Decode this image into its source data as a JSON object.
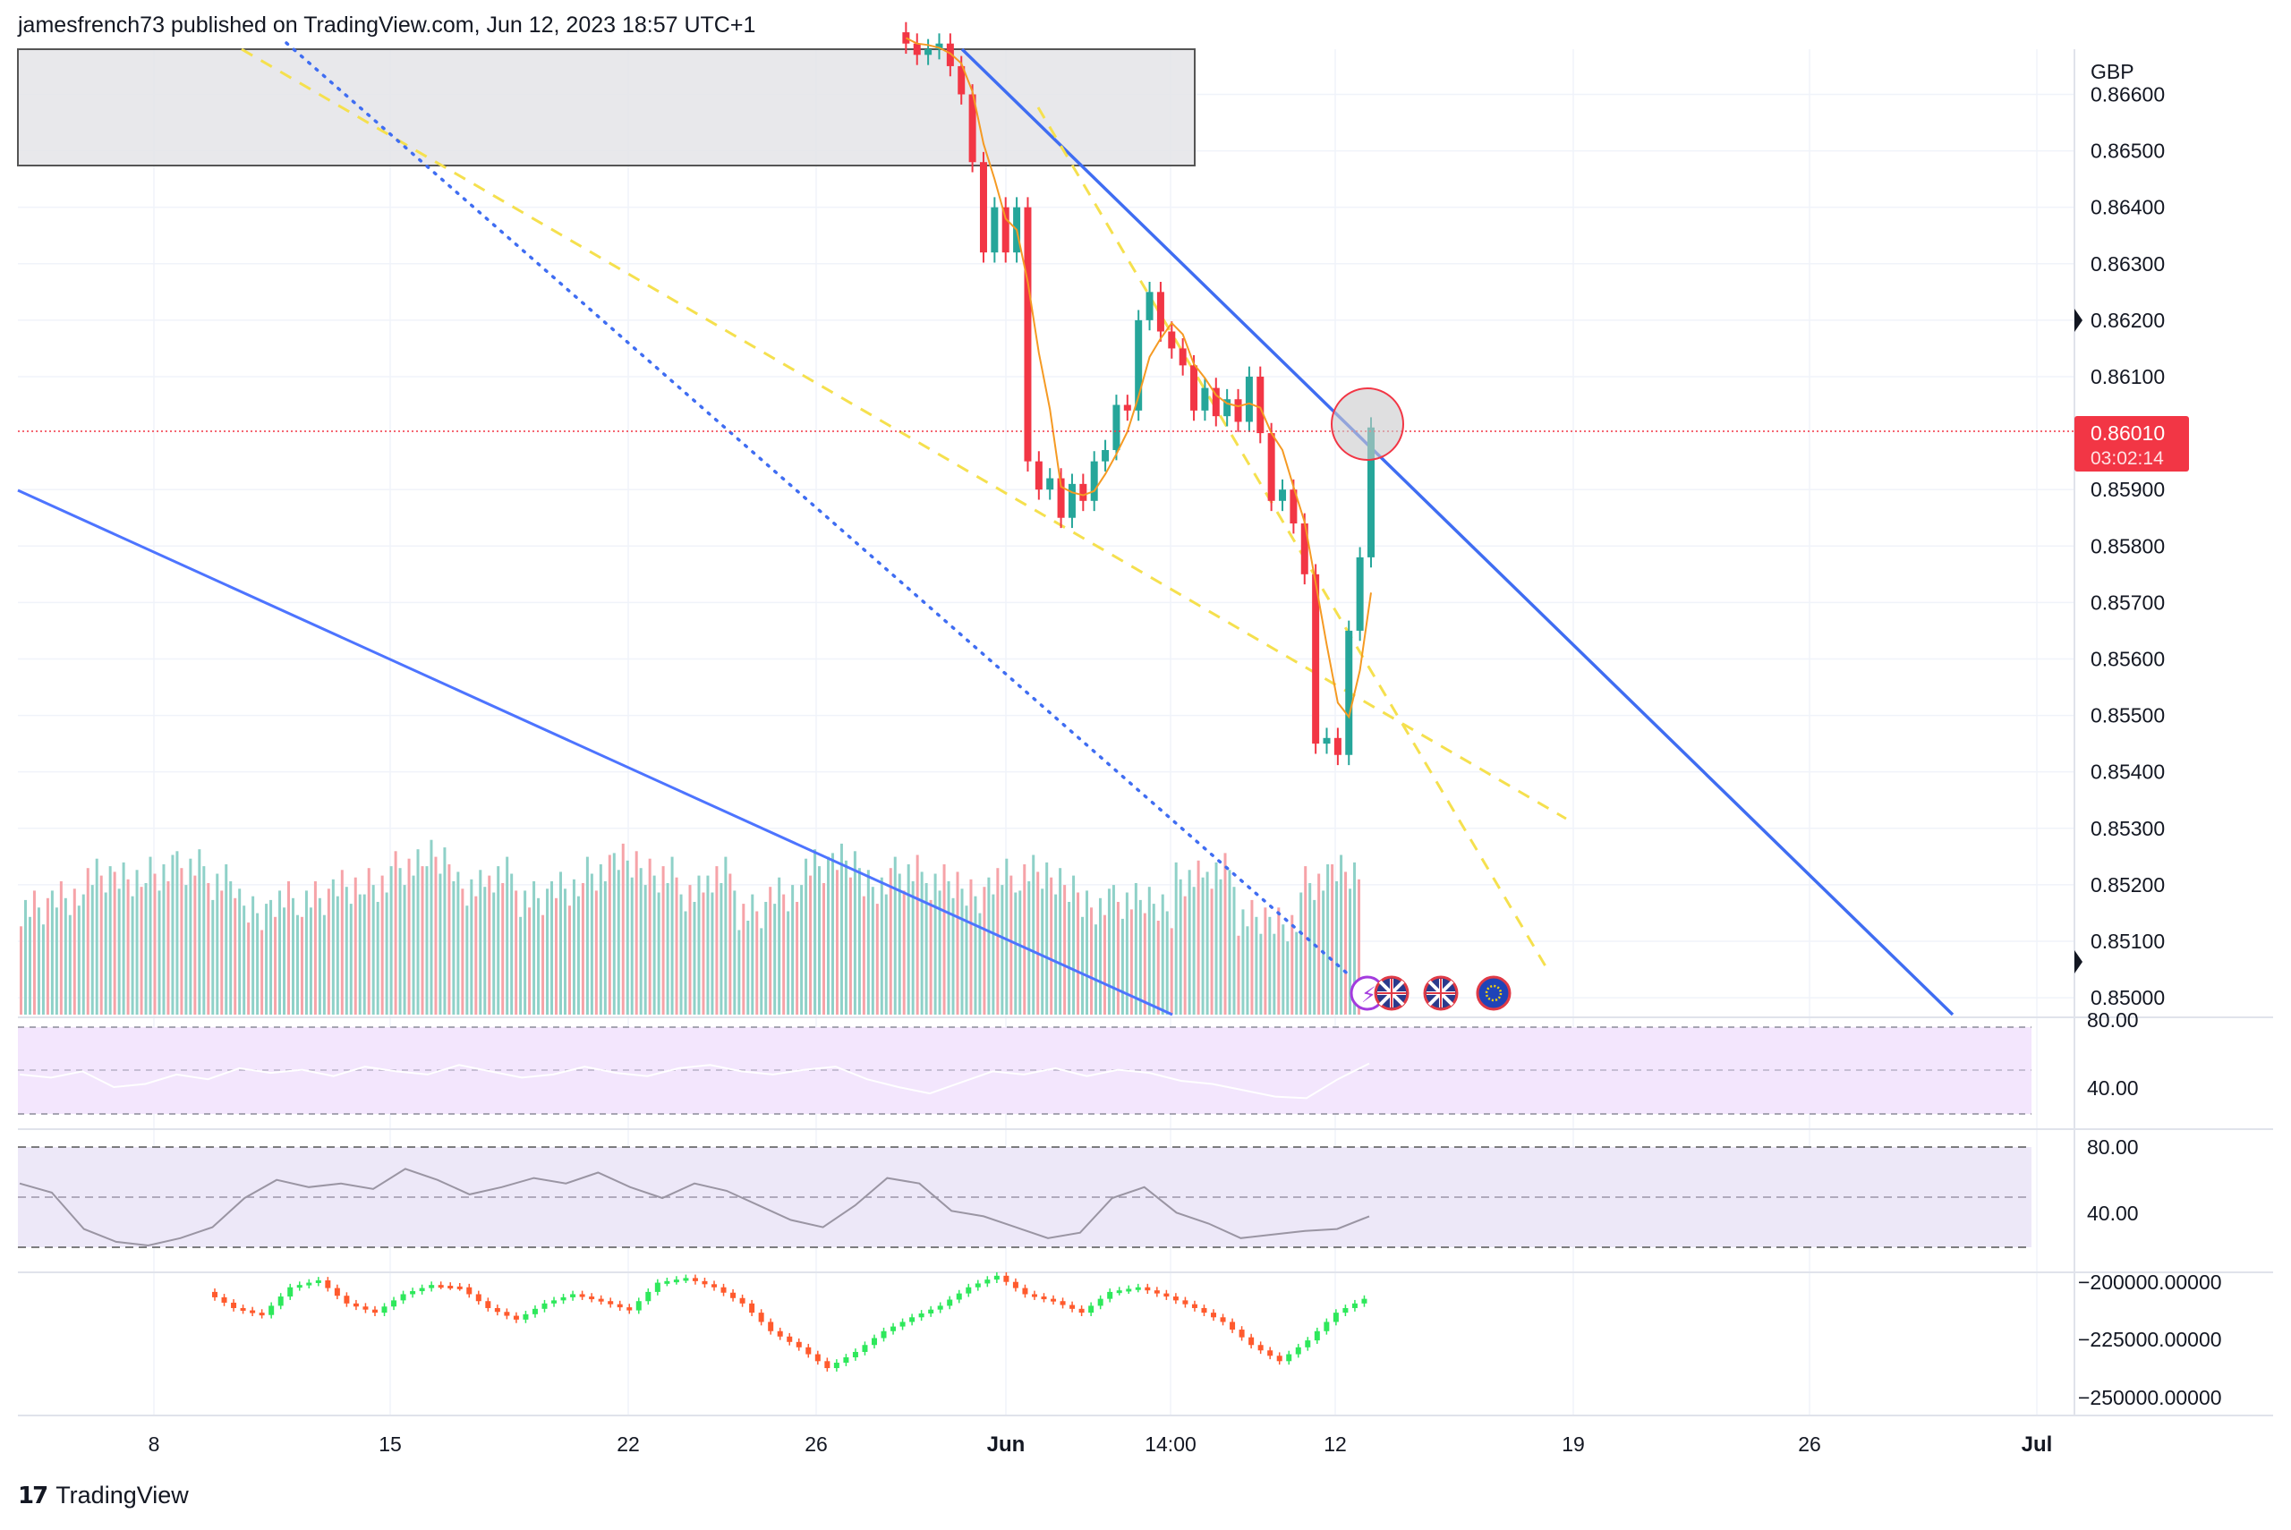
{
  "header": {
    "text": "jamesfrench73 published on TradingView.com, Jun 12, 2023 18:57 UTC+1"
  },
  "brand": {
    "name": "TradingView"
  },
  "colors": {
    "up": "#26a69a",
    "down": "#f23645",
    "trendline": "#4d74ff",
    "dashed": "#f5e04e",
    "dotted": "#3f6df2",
    "rsi_band": "#f3e6fd",
    "stoch_band": "#ede8f8",
    "osc_up": "#2ee85b",
    "osc_down": "#ff5a2d"
  },
  "chart_data": {
    "type": "candlestick",
    "symbol_currency": "GBP",
    "last_price": "0.86010",
    "countdown": "03:02:14",
    "price_axis": {
      "min": 0.8497,
      "max": 0.8668,
      "ticks": [
        "0.86600",
        "0.86500",
        "0.86400",
        "0.86300",
        "0.86200",
        "0.86100",
        "0.85900",
        "0.85800",
        "0.85700",
        "0.85600",
        "0.85500",
        "0.85400",
        "0.85300",
        "0.85200",
        "0.85100",
        "0.85000"
      ]
    },
    "time_axis": {
      "ticks": [
        "8",
        "15",
        "22",
        "26",
        "Jun",
        "14:00",
        "12",
        "19",
        "26",
        "Jul"
      ],
      "bold": [
        "Jun",
        "Jul"
      ]
    },
    "price_path": [
      0.8671,
      0.8669,
      0.8667,
      0.8668,
      0.8669,
      0.8665,
      0.866,
      0.8648,
      0.8632,
      0.864,
      0.8632,
      0.864,
      0.8595,
      0.859,
      0.8592,
      0.8585,
      0.8591,
      0.8588,
      0.8595,
      0.8597,
      0.8605,
      0.8604,
      0.862,
      0.8625,
      0.8618,
      0.8615,
      0.8612,
      0.8604,
      0.8608,
      0.8603,
      0.8606,
      0.8602,
      0.861,
      0.86,
      0.8588,
      0.859,
      0.8584,
      0.8575,
      0.8545,
      0.8546,
      0.8543,
      0.8565,
      0.8578,
      0.8601
    ],
    "volume": [
      58,
      64,
      72,
      71,
      75,
      79,
      72,
      56,
      60,
      61,
      68,
      70,
      80,
      82,
      66,
      74,
      62,
      68,
      77,
      80,
      73,
      64,
      75,
      56,
      66,
      77,
      81,
      68,
      76,
      72,
      65,
      72,
      75,
      69,
      58,
      62,
      57,
      71,
      76,
      52,
      49,
      72,
      74
    ],
    "rsi": {
      "levels": [
        "80.00",
        "40.00"
      ],
      "values": [
        50,
        48,
        52,
        42,
        44,
        50,
        47,
        54,
        51,
        53,
        49,
        55,
        52,
        50,
        56,
        52,
        48,
        50,
        55,
        51,
        49,
        54,
        56,
        52,
        50,
        53,
        55,
        47,
        42,
        38,
        45,
        52,
        50,
        54,
        49,
        53,
        51,
        46,
        44,
        40,
        36,
        35,
        47,
        57
      ]
    },
    "stochastic": {
      "levels": [
        "80.00",
        "40.00"
      ],
      "values": [
        60,
        55,
        35,
        28,
        26,
        30,
        36,
        52,
        62,
        58,
        60,
        57,
        68,
        62,
        54,
        58,
        63,
        60,
        66,
        58,
        52,
        60,
        56,
        48,
        40,
        36,
        48,
        63,
        60,
        45,
        42,
        36,
        30,
        33,
        52,
        58,
        44,
        38,
        30,
        32,
        34,
        35,
        42
      ]
    },
    "oscillator": {
      "ticks": [
        "−200000.00000",
        "−225000.00000",
        "−250000.00000"
      ],
      "values": [
        -205000,
        -212000,
        -215000,
        -203000,
        -200000,
        -210000,
        -214000,
        -206000,
        -202000,
        -203000,
        -212000,
        -217000,
        -210000,
        -206000,
        -209000,
        -213000,
        -201000,
        -199000,
        -203000,
        -210000,
        -222000,
        -229000,
        -238000,
        -231000,
        -222000,
        -216000,
        -211000,
        -203000,
        -198000,
        -206000,
        -209000,
        -214000,
        -205000,
        -203000,
        -207000,
        -212000,
        -218000,
        -228000,
        -235000,
        -226000,
        -214000,
        -208000
      ]
    }
  }
}
